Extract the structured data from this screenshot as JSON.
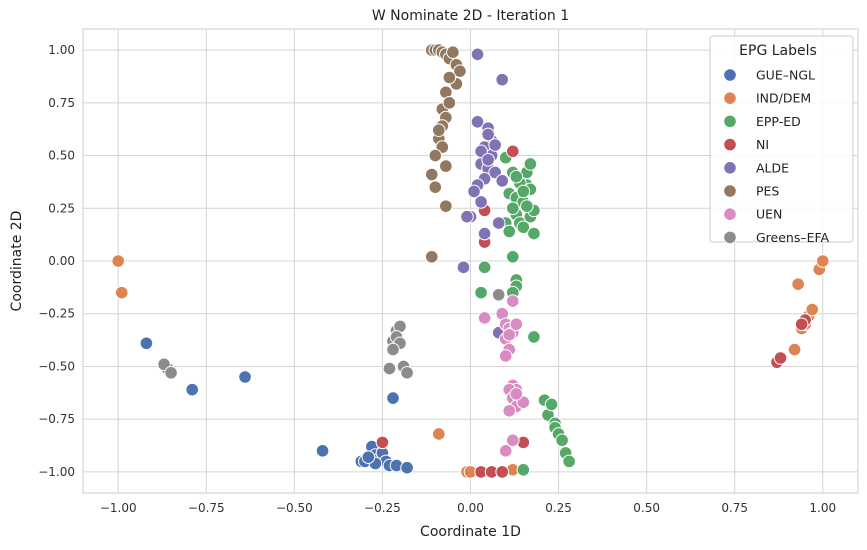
{
  "chart_data": {
    "type": "scatter",
    "title": "W Nominate 2D - Iteration 1",
    "xlabel": "Coordinate 1D",
    "ylabel": "Coordinate 2D",
    "xlim": [
      -1.1,
      1.1
    ],
    "ylim": [
      -1.1,
      1.1
    ],
    "xticks": [
      -1.0,
      -0.75,
      -0.5,
      -0.25,
      0.0,
      0.25,
      0.5,
      0.75,
      1.0
    ],
    "xtick_labels": [
      "−1.00",
      "−0.75",
      "−0.50",
      "−0.25",
      "0.00",
      "0.25",
      "0.50",
      "0.75",
      "1.00"
    ],
    "yticks": [
      -1.0,
      -0.75,
      -0.5,
      -0.25,
      0.0,
      0.25,
      0.5,
      0.75,
      1.0
    ],
    "ytick_labels": [
      "−1.00",
      "−0.75",
      "−0.50",
      "−0.25",
      "0.00",
      "0.25",
      "0.50",
      "0.75",
      "1.00"
    ],
    "grid": true,
    "legend": {
      "title": "EPG Labels",
      "placement": "top-right"
    },
    "series": [
      {
        "name": "GUE–NGL",
        "color": "#4c72b0",
        "points": [
          [
            -0.92,
            -0.39
          ],
          [
            -0.86,
            -0.51
          ],
          [
            -0.79,
            -0.61
          ],
          [
            -0.64,
            -0.55
          ],
          [
            -0.42,
            -0.9
          ],
          [
            -0.31,
            -0.95
          ],
          [
            -0.3,
            -0.95
          ],
          [
            -0.28,
            -0.88
          ],
          [
            -0.27,
            -0.92
          ],
          [
            -0.26,
            -0.94
          ],
          [
            -0.25,
            -0.91
          ],
          [
            -0.24,
            -0.95
          ],
          [
            -0.23,
            -0.97
          ],
          [
            -0.22,
            -0.65
          ],
          [
            -0.21,
            -0.97
          ],
          [
            -0.18,
            -0.98
          ],
          [
            -0.27,
            -0.96
          ],
          [
            -0.29,
            -0.93
          ]
        ]
      },
      {
        "name": "IND/DEM",
        "color": "#dd8452",
        "points": [
          [
            -1.0,
            0.0
          ],
          [
            -0.99,
            -0.15
          ],
          [
            -0.09,
            -0.82
          ],
          [
            -0.01,
            -1.0
          ],
          [
            0.0,
            -1.0
          ],
          [
            0.12,
            -0.99
          ],
          [
            0.92,
            -0.42
          ],
          [
            0.94,
            -0.32
          ],
          [
            0.95,
            -0.3
          ],
          [
            0.96,
            -0.26
          ],
          [
            0.97,
            -0.23
          ],
          [
            0.99,
            -0.04
          ],
          [
            1.0,
            0.0
          ],
          [
            0.93,
            -0.11
          ]
        ]
      },
      {
        "name": "EPP-ED",
        "color": "#55a868",
        "points": [
          [
            0.04,
            -0.03
          ],
          [
            0.03,
            -0.15
          ],
          [
            0.1,
            0.49
          ],
          [
            0.11,
            0.32
          ],
          [
            0.12,
            0.42
          ],
          [
            0.13,
            0.3
          ],
          [
            0.13,
            0.22
          ],
          [
            0.14,
            0.18
          ],
          [
            0.15,
            0.16
          ],
          [
            0.15,
            0.28
          ],
          [
            0.16,
            0.42
          ],
          [
            0.16,
            0.36
          ],
          [
            0.17,
            0.21
          ],
          [
            0.17,
            0.34
          ],
          [
            0.18,
            0.24
          ],
          [
            0.18,
            0.13
          ],
          [
            0.17,
            0.46
          ],
          [
            0.12,
            0.02
          ],
          [
            0.13,
            -0.09
          ],
          [
            0.13,
            -0.12
          ],
          [
            0.12,
            -0.15
          ],
          [
            0.18,
            -0.36
          ],
          [
            0.21,
            -0.66
          ],
          [
            0.22,
            -0.73
          ],
          [
            0.23,
            -0.68
          ],
          [
            0.24,
            -0.77
          ],
          [
            0.24,
            -0.79
          ],
          [
            0.25,
            -0.82
          ],
          [
            0.26,
            -0.85
          ],
          [
            0.27,
            -0.91
          ],
          [
            0.28,
            -0.95
          ],
          [
            0.15,
            -0.99
          ],
          [
            0.1,
            0.18
          ],
          [
            0.11,
            0.14
          ],
          [
            0.14,
            0.37
          ],
          [
            0.15,
            0.33
          ],
          [
            0.16,
            0.26
          ],
          [
            0.13,
            0.4
          ],
          [
            0.12,
            0.25
          ]
        ]
      },
      {
        "name": "NI",
        "color": "#c44e52",
        "points": [
          [
            0.12,
            0.52
          ],
          [
            0.04,
            0.09
          ],
          [
            0.04,
            0.24
          ],
          [
            0.03,
            -1.0
          ],
          [
            0.06,
            -1.0
          ],
          [
            0.09,
            -1.0
          ],
          [
            0.15,
            -0.86
          ],
          [
            -0.25,
            -0.86
          ],
          [
            0.87,
            -0.48
          ],
          [
            0.88,
            -0.46
          ],
          [
            0.95,
            -0.28
          ],
          [
            0.94,
            -0.3
          ]
        ]
      },
      {
        "name": "ALDE",
        "color": "#8172b3",
        "points": [
          [
            0.02,
            0.98
          ],
          [
            0.09,
            0.86
          ],
          [
            0.02,
            0.66
          ],
          [
            0.05,
            0.63
          ],
          [
            0.06,
            0.57
          ],
          [
            0.04,
            0.54
          ],
          [
            0.03,
            0.46
          ],
          [
            0.05,
            0.44
          ],
          [
            0.04,
            0.39
          ],
          [
            0.02,
            0.36
          ],
          [
            0.01,
            0.33
          ],
          [
            0.07,
            0.42
          ],
          [
            0.09,
            0.38
          ],
          [
            0.03,
            0.28
          ],
          [
            0.0,
            0.21
          ],
          [
            0.04,
            0.13
          ],
          [
            -0.01,
            0.21
          ],
          [
            0.08,
            0.18
          ],
          [
            -0.02,
            -0.03
          ],
          [
            0.05,
            0.6
          ],
          [
            0.06,
            0.5
          ],
          [
            0.03,
            0.52
          ],
          [
            0.08,
            -0.34
          ],
          [
            0.07,
            0.55
          ],
          [
            0.05,
            0.48
          ]
        ]
      },
      {
        "name": "PES",
        "color": "#937860",
        "points": [
          [
            -0.11,
            1.0
          ],
          [
            -0.1,
            1.0
          ],
          [
            -0.09,
            1.0
          ],
          [
            -0.08,
            0.99
          ],
          [
            -0.07,
            0.98
          ],
          [
            -0.06,
            0.96
          ],
          [
            -0.05,
            0.99
          ],
          [
            -0.04,
            0.93
          ],
          [
            -0.03,
            0.9
          ],
          [
            -0.04,
            0.84
          ],
          [
            -0.06,
            0.87
          ],
          [
            -0.07,
            0.8
          ],
          [
            -0.08,
            0.72
          ],
          [
            -0.07,
            0.68
          ],
          [
            -0.08,
            0.64
          ],
          [
            -0.09,
            0.58
          ],
          [
            -0.08,
            0.54
          ],
          [
            -0.1,
            0.5
          ],
          [
            -0.07,
            0.45
          ],
          [
            -0.11,
            0.41
          ],
          [
            -0.1,
            0.35
          ],
          [
            -0.07,
            0.26
          ],
          [
            -0.11,
            0.02
          ],
          [
            -0.06,
            0.75
          ],
          [
            -0.09,
            0.62
          ]
        ]
      },
      {
        "name": "UEN",
        "color": "#da8bc3",
        "points": [
          [
            0.04,
            -0.27
          ],
          [
            0.12,
            -0.19
          ],
          [
            0.09,
            -0.25
          ],
          [
            0.1,
            -0.3
          ],
          [
            0.11,
            -0.32
          ],
          [
            0.12,
            -0.34
          ],
          [
            0.13,
            -0.3
          ],
          [
            0.1,
            -0.37
          ],
          [
            0.11,
            -0.42
          ],
          [
            0.1,
            -0.45
          ],
          [
            0.12,
            -0.59
          ],
          [
            0.13,
            -0.61
          ],
          [
            0.11,
            -0.61
          ],
          [
            0.12,
            -0.65
          ],
          [
            0.14,
            -0.66
          ],
          [
            0.13,
            -0.69
          ],
          [
            0.15,
            -0.67
          ],
          [
            0.11,
            -0.71
          ],
          [
            0.1,
            -0.9
          ],
          [
            0.12,
            -0.85
          ],
          [
            0.11,
            -0.35
          ],
          [
            0.13,
            -0.63
          ]
        ]
      },
      {
        "name": "Greens–EFA",
        "color": "#8c8c8c",
        "points": [
          [
            -0.87,
            -0.49
          ],
          [
            -0.85,
            -0.53
          ],
          [
            -0.23,
            -0.51
          ],
          [
            -0.22,
            -0.38
          ],
          [
            -0.21,
            -0.33
          ],
          [
            -0.2,
            -0.31
          ],
          [
            -0.21,
            -0.36
          ],
          [
            -0.2,
            -0.39
          ],
          [
            -0.19,
            -0.5
          ],
          [
            -0.18,
            -0.53
          ],
          [
            0.08,
            -0.16
          ],
          [
            -0.22,
            -0.42
          ]
        ]
      }
    ]
  }
}
